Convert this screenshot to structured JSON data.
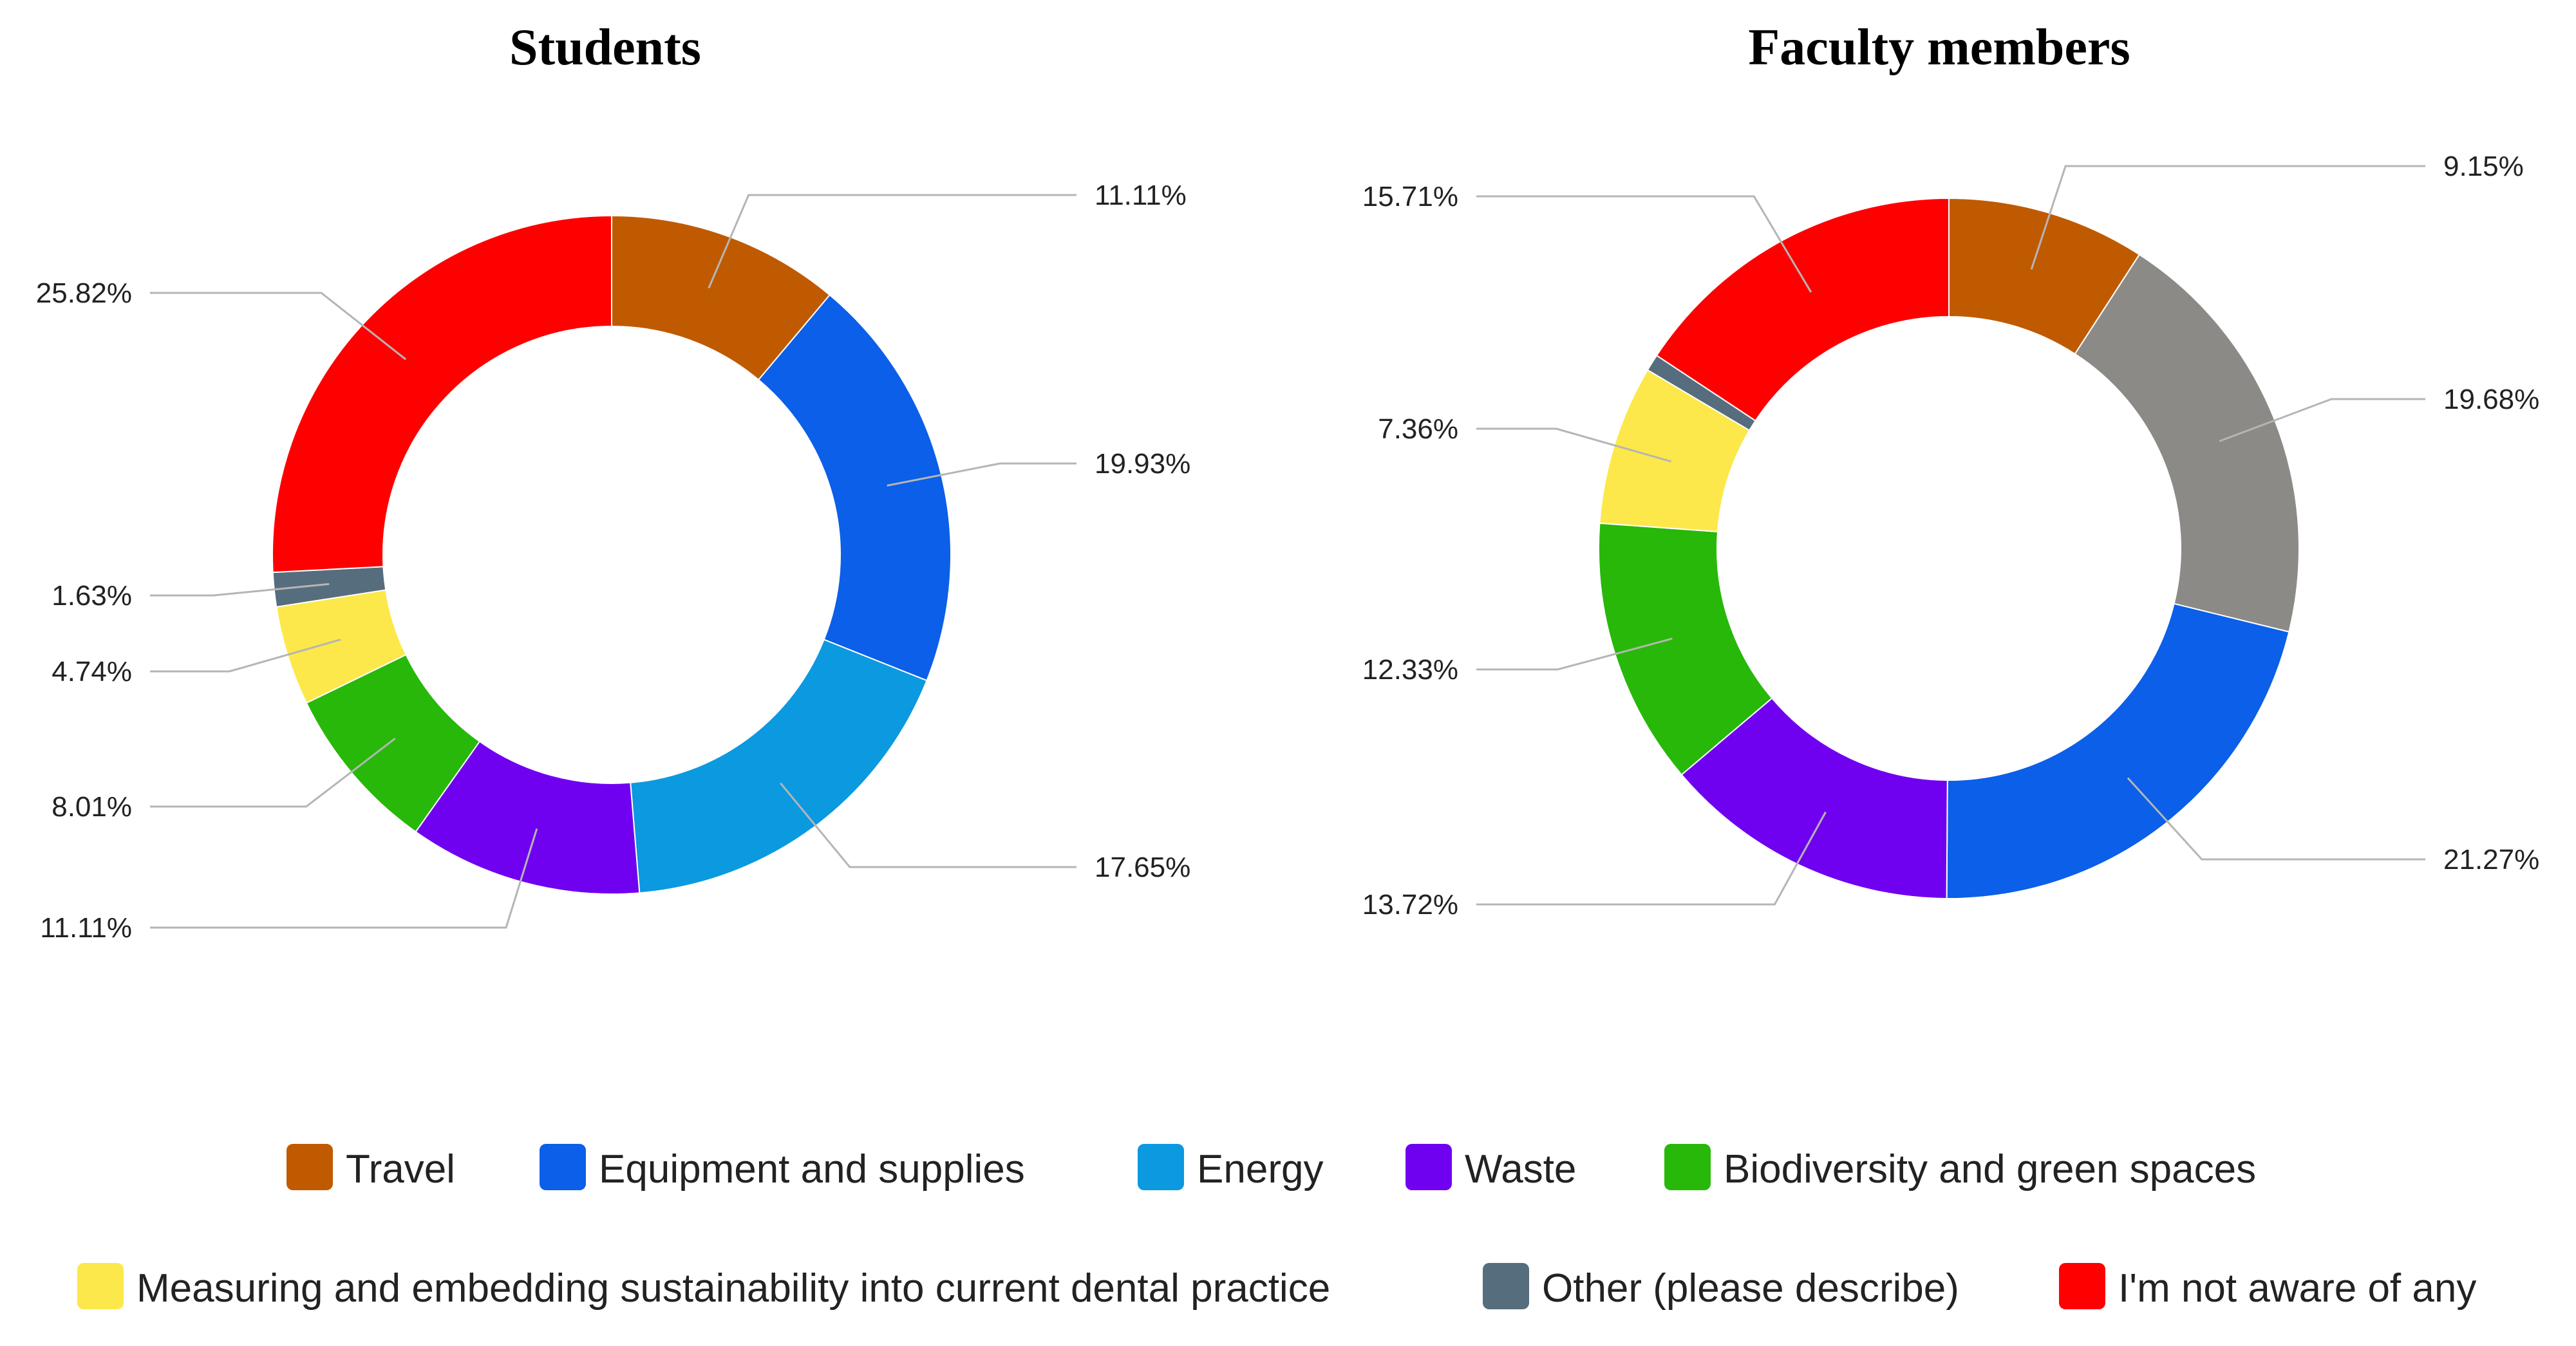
{
  "chart_data": {
    "type": "donut",
    "categories": [
      "Travel",
      "Equipment and supplies",
      "Energy",
      "Waste",
      "Biodiversity and green spaces",
      "Measuring and embedding sustainability into current dental practice",
      "Other (please describe)",
      "I'm not aware of any"
    ],
    "colors": {
      "Travel": "#c05a00",
      "Equipment and supplies": "#0b5fe8",
      "Energy": "#0b99e0",
      "Waste": "#7000f0",
      "Biodiversity and green spaces": "#27b80a",
      "Measuring and embedding sustainability into current dental practice": "#fce84a",
      "Other (please describe)": "#566d7e",
      "I'm not aware of any": "#ff0000",
      "Unlabeled (gray)": "#8c8a86"
    },
    "charts": [
      {
        "title": "Students",
        "slices": [
          {
            "category": "Travel",
            "value": 11.11,
            "label": "11.11%"
          },
          {
            "category": "Equipment and supplies",
            "value": 19.93,
            "label": "19.93%"
          },
          {
            "category": "Energy",
            "value": 17.65,
            "label": "17.65%"
          },
          {
            "category": "Waste",
            "value": 11.11,
            "label": "11.11%"
          },
          {
            "category": "Biodiversity and green spaces",
            "value": 8.01,
            "label": "8.01%"
          },
          {
            "category": "Measuring and embedding sustainability into current dental practice",
            "value": 4.74,
            "label": "4.74%"
          },
          {
            "category": "Other (please describe)",
            "value": 1.63,
            "label": "1.63%"
          },
          {
            "category": "I'm not aware of any",
            "value": 25.82,
            "label": "25.82%"
          }
        ]
      },
      {
        "title": "Faculty members",
        "slices": [
          {
            "category": "Travel",
            "value": 9.15,
            "label": "9.15%"
          },
          {
            "category": "Unlabeled (gray)",
            "value": 19.68,
            "label": "19.68%"
          },
          {
            "category": "Equipment and supplies",
            "value": 21.27,
            "label": "21.27%"
          },
          {
            "category": "Waste",
            "value": 13.72,
            "label": "13.72%"
          },
          {
            "category": "Biodiversity and green spaces",
            "value": 12.33,
            "label": "12.33%"
          },
          {
            "category": "Measuring and embedding sustainability into current dental practice",
            "value": 7.36,
            "label": "7.36%"
          },
          {
            "category": "Other (please describe)",
            "value": 0.78,
            "label": ""
          },
          {
            "category": "I'm not aware of any",
            "value": 15.71,
            "label": "15.71%"
          }
        ]
      }
    ],
    "legend": [
      "Travel",
      "Equipment and supplies",
      "Energy",
      "Waste",
      "Biodiversity and green spaces",
      "Measuring and embedding sustainability into current dental practice",
      "Other (please describe)",
      "I'm not aware of any"
    ],
    "legend_position": "bottom"
  }
}
